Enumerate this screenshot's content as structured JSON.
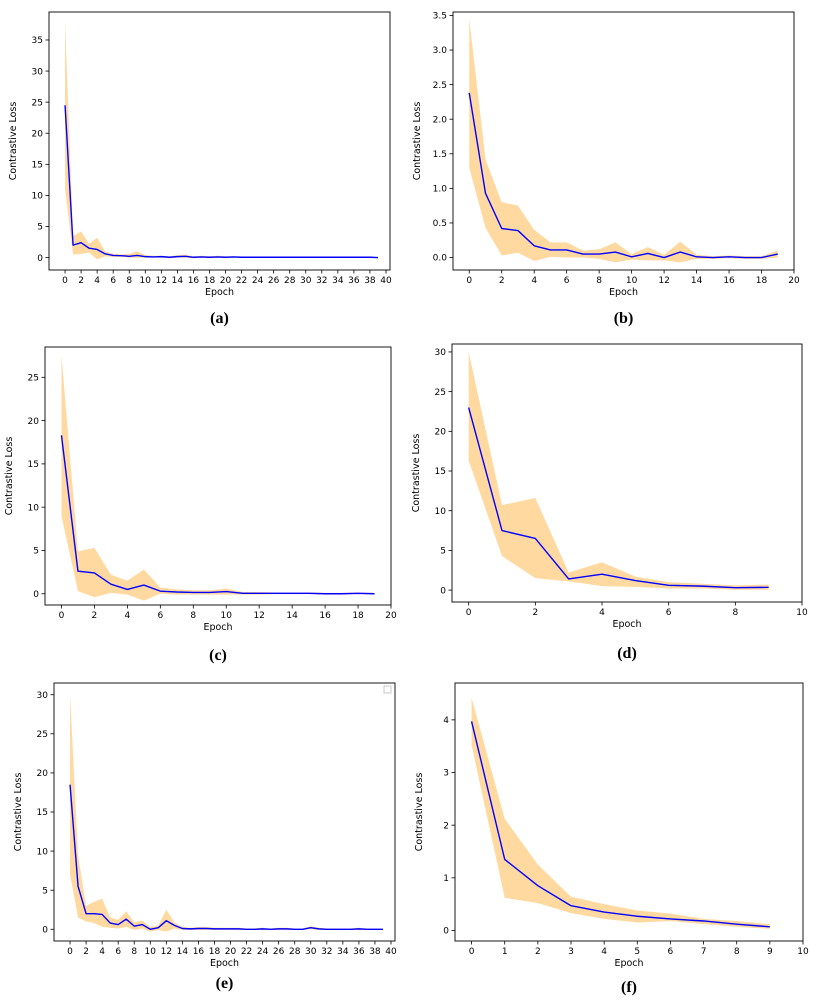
{
  "colors": {
    "band": "#ffd9a0",
    "mean_line": "#0000ff"
  },
  "chart_data": [
    {
      "label": "(a)",
      "type": "line",
      "xlabel": "Epoch",
      "ylabel": "Contrastive Loss",
      "xlim": [
        -2,
        40.5
      ],
      "ylim": [
        -2,
        39.5
      ],
      "xticks": [
        0,
        2,
        4,
        6,
        8,
        10,
        12,
        14,
        16,
        18,
        20,
        22,
        24,
        26,
        28,
        30,
        32,
        34,
        36,
        38,
        40
      ],
      "yticks": [
        0,
        5,
        10,
        15,
        20,
        25,
        30,
        35
      ],
      "x": [
        0,
        1,
        2,
        3,
        4,
        5,
        6,
        7,
        8,
        9,
        10,
        11,
        12,
        13,
        14,
        15,
        16,
        17,
        18,
        19,
        20,
        21,
        22,
        23,
        24,
        25,
        26,
        27,
        28,
        29,
        30,
        31,
        32,
        33,
        34,
        35,
        36,
        37,
        38,
        39
      ],
      "mean": [
        24.5,
        2.0,
        2.4,
        1.5,
        1.3,
        0.6,
        0.35,
        0.3,
        0.2,
        0.35,
        0.15,
        0.1,
        0.15,
        0.05,
        0.15,
        0.2,
        0.05,
        0.1,
        0.05,
        0.1,
        0.05,
        0.1,
        0.05,
        0.05,
        0.05,
        0.05,
        0.05,
        0.05,
        0.05,
        0.05,
        0.05,
        0.05,
        0.05,
        0.05,
        0.05,
        0.05,
        0.05,
        0.05,
        0.05,
        0.0
      ],
      "upper": [
        38.0,
        3.5,
        4.2,
        2.2,
        3.2,
        1.0,
        0.6,
        0.5,
        0.6,
        1.0,
        0.4,
        0.3,
        0.3,
        0.2,
        0.4,
        0.5,
        0.2,
        0.3,
        0.2,
        0.3,
        0.2,
        0.2,
        0.15,
        0.15,
        0.15,
        0.15,
        0.15,
        0.15,
        0.15,
        0.15,
        0.15,
        0.15,
        0.15,
        0.15,
        0.15,
        0.15,
        0.15,
        0.15,
        0.15,
        0.1
      ],
      "lower": [
        11.0,
        0.5,
        0.6,
        0.8,
        -0.3,
        0.2,
        0.1,
        0.1,
        0.0,
        0.0,
        0.0,
        0.0,
        0.0,
        -0.1,
        0.0,
        0.0,
        -0.1,
        0.0,
        -0.1,
        0.0,
        -0.1,
        0.0,
        -0.05,
        -0.05,
        -0.05,
        -0.05,
        -0.05,
        -0.05,
        -0.05,
        -0.05,
        -0.05,
        -0.05,
        -0.05,
        -0.05,
        -0.05,
        -0.05,
        -0.05,
        -0.05,
        -0.05,
        -0.1
      ]
    },
    {
      "label": "(b)",
      "type": "line",
      "xlabel": "Epoch",
      "ylabel": "Contrastive Loss",
      "xlim": [
        -1,
        20
      ],
      "ylim": [
        -0.18,
        3.55
      ],
      "xticks": [
        0,
        2,
        4,
        6,
        8,
        10,
        12,
        14,
        16,
        18,
        20
      ],
      "yticks": [
        "0.0",
        "0.5",
        "1.0",
        "1.5",
        "2.0",
        "2.5",
        "3.0",
        "3.5"
      ],
      "x": [
        0,
        1,
        2,
        3,
        4,
        5,
        6,
        7,
        8,
        9,
        10,
        11,
        12,
        13,
        14,
        15,
        16,
        17,
        18,
        19
      ],
      "mean": [
        2.38,
        0.93,
        0.42,
        0.39,
        0.17,
        0.11,
        0.11,
        0.05,
        0.05,
        0.08,
        0.01,
        0.06,
        0.0,
        0.08,
        0.01,
        0.0,
        0.01,
        0.0,
        0.0,
        0.05
      ],
      "upper": [
        3.45,
        1.42,
        0.8,
        0.75,
        0.4,
        0.22,
        0.22,
        0.1,
        0.12,
        0.22,
        0.05,
        0.15,
        0.04,
        0.23,
        0.04,
        0.02,
        0.03,
        0.02,
        0.02,
        0.1
      ],
      "lower": [
        1.3,
        0.43,
        0.03,
        0.07,
        -0.05,
        0.01,
        0.0,
        0.0,
        -0.02,
        -0.07,
        -0.03,
        -0.04,
        -0.04,
        -0.07,
        -0.02,
        -0.02,
        -0.01,
        -0.02,
        -0.02,
        0.0
      ]
    },
    {
      "label": "(c)",
      "type": "line",
      "xlabel": "Epoch",
      "ylabel": "Contrastive Loss",
      "xlim": [
        -1,
        20
      ],
      "ylim": [
        -1.3,
        28.5
      ],
      "xticks": [
        0,
        2,
        4,
        6,
        8,
        10,
        12,
        14,
        16,
        18,
        20
      ],
      "yticks": [
        0,
        5,
        10,
        15,
        20,
        25
      ],
      "x": [
        0,
        1,
        2,
        3,
        4,
        5,
        6,
        7,
        8,
        9,
        10,
        11,
        12,
        13,
        14,
        15,
        16,
        17,
        18,
        19
      ],
      "mean": [
        18.3,
        2.6,
        2.4,
        1.1,
        0.5,
        1.0,
        0.3,
        0.2,
        0.15,
        0.15,
        0.25,
        0.05,
        0.05,
        0.05,
        0.05,
        0.05,
        0.0,
        0.0,
        0.05,
        0.0
      ],
      "upper": [
        27.5,
        4.9,
        5.3,
        2.2,
        1.5,
        2.8,
        0.7,
        0.5,
        0.4,
        0.4,
        0.6,
        0.2,
        0.2,
        0.15,
        0.15,
        0.15,
        0.1,
        0.1,
        0.15,
        0.1
      ],
      "lower": [
        9.0,
        0.3,
        -0.4,
        0.1,
        -0.1,
        -0.8,
        0.0,
        -0.1,
        -0.1,
        -0.1,
        -0.1,
        -0.1,
        -0.1,
        -0.05,
        -0.05,
        -0.05,
        -0.1,
        -0.1,
        -0.05,
        -0.1
      ]
    },
    {
      "label": "(d)",
      "type": "line",
      "xlabel": "Epoch",
      "ylabel": "Contrastive Loss",
      "xlim": [
        -0.5,
        10
      ],
      "ylim": [
        -1.5,
        31
      ],
      "xticks": [
        0,
        2,
        4,
        6,
        8,
        10
      ],
      "yticks": [
        0,
        5,
        10,
        15,
        20,
        25,
        30
      ],
      "x": [
        0,
        1,
        2,
        3,
        4,
        5,
        6,
        7,
        8,
        9
      ],
      "mean": [
        23.0,
        7.5,
        6.5,
        1.4,
        2.0,
        1.2,
        0.6,
        0.5,
        0.3,
        0.35
      ],
      "upper": [
        30.0,
        10.7,
        11.6,
        2.2,
        3.5,
        1.7,
        1.0,
        0.8,
        0.6,
        0.7
      ],
      "lower": [
        16.3,
        4.3,
        1.5,
        1.1,
        0.5,
        0.4,
        0.2,
        0.2,
        0.05,
        0.05
      ]
    },
    {
      "label": "(e)",
      "type": "line",
      "xlabel": "Epoch",
      "ylabel": "Contrastive Loss",
      "xlim": [
        -2,
        40.5
      ],
      "ylim": [
        -1.5,
        31.5
      ],
      "xticks": [
        0,
        2,
        4,
        6,
        8,
        10,
        12,
        14,
        16,
        18,
        20,
        22,
        24,
        26,
        28,
        30,
        32,
        34,
        36,
        38,
        40
      ],
      "yticks": [
        0,
        5,
        10,
        15,
        20,
        25,
        30
      ],
      "x": [
        0,
        1,
        2,
        3,
        4,
        5,
        6,
        7,
        8,
        9,
        10,
        11,
        12,
        13,
        14,
        15,
        16,
        17,
        18,
        19,
        20,
        21,
        22,
        23,
        24,
        25,
        26,
        27,
        28,
        29,
        30,
        31,
        32,
        33,
        34,
        35,
        36,
        37,
        38,
        39
      ],
      "mean": [
        18.5,
        5.5,
        2.0,
        2.0,
        1.9,
        0.8,
        0.6,
        1.3,
        0.4,
        0.6,
        0.0,
        0.2,
        1.1,
        0.5,
        0.1,
        0.05,
        0.1,
        0.1,
        0.05,
        0.05,
        0.05,
        0.05,
        0.0,
        0.0,
        0.05,
        0.0,
        0.05,
        0.05,
        0.0,
        0.0,
        0.2,
        0.05,
        0.0,
        0.0,
        0.0,
        0.0,
        0.05,
        0.0,
        0.0,
        0.0
      ],
      "upper": [
        30.0,
        9.5,
        3.0,
        3.5,
        3.9,
        1.5,
        1.2,
        2.3,
        0.9,
        1.1,
        0.3,
        0.5,
        2.5,
        0.9,
        0.3,
        0.2,
        0.3,
        0.3,
        0.2,
        0.2,
        0.2,
        0.2,
        0.1,
        0.1,
        0.2,
        0.1,
        0.2,
        0.2,
        0.1,
        0.1,
        0.4,
        0.2,
        0.1,
        0.1,
        0.1,
        0.1,
        0.2,
        0.1,
        0.1,
        0.1
      ],
      "lower": [
        7.0,
        1.5,
        1.0,
        0.8,
        0.3,
        0.2,
        0.1,
        0.3,
        -0.1,
        0.1,
        -0.3,
        -0.1,
        -0.3,
        0.1,
        -0.1,
        -0.1,
        -0.1,
        -0.1,
        -0.1,
        -0.1,
        -0.1,
        -0.1,
        -0.1,
        -0.1,
        -0.1,
        -0.1,
        -0.1,
        -0.1,
        -0.1,
        -0.1,
        0.0,
        -0.1,
        -0.1,
        -0.1,
        -0.1,
        -0.1,
        -0.1,
        -0.1,
        -0.1,
        -0.1
      ]
    },
    {
      "label": "(f)",
      "type": "line",
      "xlabel": "Epoch",
      "ylabel": "Contrastive Loss",
      "xlim": [
        -0.5,
        10
      ],
      "ylim": [
        -0.2,
        4.7
      ],
      "xticks": [
        0,
        1,
        2,
        3,
        4,
        5,
        6,
        7,
        8,
        9,
        10
      ],
      "yticks": [
        0,
        1,
        2,
        3,
        4
      ],
      "x": [
        0,
        1,
        2,
        3,
        4,
        5,
        6,
        7,
        8,
        9
      ],
      "mean": [
        3.97,
        1.35,
        0.85,
        0.47,
        0.35,
        0.27,
        0.22,
        0.18,
        0.12,
        0.07
      ],
      "upper": [
        4.42,
        2.12,
        1.25,
        0.64,
        0.5,
        0.38,
        0.32,
        0.22,
        0.18,
        0.12
      ],
      "lower": [
        3.52,
        0.62,
        0.52,
        0.33,
        0.22,
        0.15,
        0.18,
        0.12,
        0.07,
        0.03
      ]
    }
  ]
}
